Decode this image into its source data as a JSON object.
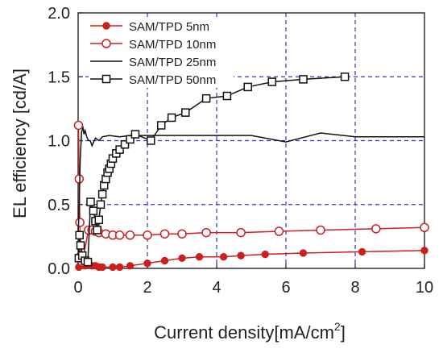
{
  "chart_data": {
    "type": "line",
    "xlabel": "Current density[mA/cm",
    "xlabel_sup": "2",
    "xlabel_end": "]",
    "ylabel": "EL efficiency [cd/A]",
    "xlim": [
      0,
      10
    ],
    "ylim": [
      0,
      2.0
    ],
    "x_ticks": [
      "0",
      "2",
      "4",
      "6",
      "8",
      "10"
    ],
    "y_ticks": [
      "0.0",
      "0.5",
      "1.0",
      "1.5",
      "2.0"
    ],
    "grid": true,
    "legend_position": "top-left",
    "series": [
      {
        "name": "SAM/TPD  5nm",
        "color": "#cc1f1f",
        "marker": "filled-circle",
        "x": [
          0.02,
          0.05,
          0.08,
          0.12,
          0.2,
          0.3,
          0.4,
          0.5,
          0.6,
          0.7,
          1.0,
          1.2,
          1.5,
          2.0,
          2.5,
          3.0,
          3.5,
          4.2,
          4.7,
          5.4,
          6.5,
          8.2,
          10.0
        ],
        "y": [
          0.01,
          0.02,
          0.03,
          0.04,
          0.02,
          0.03,
          0.02,
          0.02,
          0.01,
          0.01,
          0.01,
          0.01,
          0.02,
          0.04,
          0.06,
          0.08,
          0.09,
          0.09,
          0.1,
          0.11,
          0.12,
          0.13,
          0.14
        ]
      },
      {
        "name": "SAM/TPD  10nm",
        "color": "#cc1f1f",
        "marker": "open-circle",
        "x": [
          0.01,
          0.03,
          0.05,
          0.08,
          0.12,
          0.3,
          0.4,
          0.5,
          0.6,
          0.8,
          1.0,
          1.2,
          1.5,
          2.0,
          2.5,
          3.0,
          3.7,
          4.7,
          5.8,
          7.0,
          8.6,
          10.0
        ],
        "y": [
          1.12,
          0.7,
          0.36,
          0.1,
          0.05,
          0.3,
          0.3,
          0.29,
          0.28,
          0.27,
          0.26,
          0.26,
          0.26,
          0.26,
          0.27,
          0.27,
          0.28,
          0.28,
          0.29,
          0.3,
          0.31,
          0.32
        ]
      },
      {
        "name": "SAM/TPD  25nm",
        "color": "#111111",
        "marker": "none",
        "x": [
          0.0,
          0.03,
          0.06,
          0.1,
          0.14,
          0.17,
          0.2,
          0.25,
          0.3,
          0.35,
          0.4,
          0.5,
          0.6,
          0.7,
          0.9,
          1.2,
          1.5,
          2.0,
          2.5,
          3.0,
          4.0,
          5.0,
          6.0,
          7.0,
          8.0,
          9.0,
          10.0
        ],
        "y": [
          0.25,
          0.5,
          0.85,
          1.07,
          1.1,
          1.05,
          1.08,
          1.03,
          1.0,
          1.0,
          0.96,
          1.02,
          1.0,
          1.03,
          1.04,
          1.03,
          1.04,
          1.04,
          1.04,
          1.04,
          1.04,
          1.04,
          0.99,
          1.06,
          1.03,
          1.03,
          1.03
        ]
      },
      {
        "name": "SAM/TPD  50nm",
        "color": "#111111",
        "marker": "open-square",
        "x": [
          0.02,
          0.04,
          0.07,
          0.12,
          0.2,
          0.28,
          0.36,
          0.44,
          0.5,
          0.55,
          0.6,
          0.65,
          0.7,
          0.75,
          0.8,
          0.85,
          0.9,
          0.95,
          1.0,
          1.1,
          1.2,
          1.35,
          1.5,
          1.65,
          2.1,
          2.4,
          2.7,
          3.1,
          3.7,
          4.3,
          4.9,
          5.6,
          6.5,
          7.7
        ],
        "y": [
          0.08,
          0.26,
          0.18,
          0.1,
          0.06,
          0.05,
          0.52,
          0.45,
          0.37,
          0.3,
          0.38,
          0.5,
          0.58,
          0.65,
          0.7,
          0.75,
          0.78,
          0.82,
          0.86,
          0.9,
          0.93,
          0.97,
          1.01,
          1.05,
          1.0,
          1.12,
          1.18,
          1.22,
          1.33,
          1.35,
          1.42,
          1.46,
          1.48,
          1.5
        ]
      }
    ]
  }
}
